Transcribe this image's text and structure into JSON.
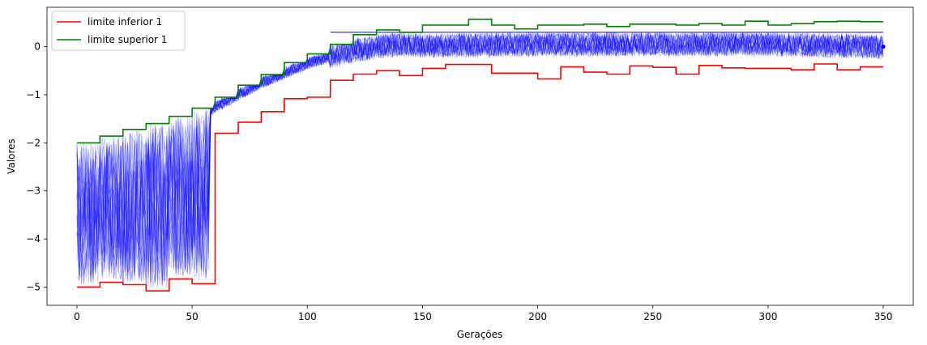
{
  "chart_data": {
    "type": "line",
    "xlabel": "Gerações",
    "ylabel": "Valores",
    "xlim": [
      -13,
      363
    ],
    "ylim": [
      -5.38,
      0.82
    ],
    "xticks": [
      0,
      50,
      100,
      150,
      200,
      250,
      300,
      350
    ],
    "yticks": [
      -5,
      -4,
      -3,
      -2,
      -1,
      0
    ],
    "grid": false,
    "legend_position": "top-left",
    "series": [
      {
        "name": "limite inferior 1",
        "color": "#ff0000",
        "x": [
          0,
          10,
          10,
          20,
          20,
          30,
          30,
          40,
          40,
          50,
          50,
          60,
          60,
          70,
          70,
          80,
          80,
          90,
          90,
          100,
          100,
          110,
          110,
          120,
          120,
          130,
          130,
          140,
          140,
          150,
          150,
          160,
          160,
          170,
          170,
          180,
          180,
          190,
          190,
          200,
          200,
          210,
          210,
          220,
          220,
          230,
          230,
          240,
          240,
          250,
          250,
          260,
          260,
          270,
          270,
          280,
          280,
          290,
          290,
          300,
          300,
          310,
          310,
          320,
          320,
          330,
          330,
          340,
          340,
          350
        ],
        "y": [
          -5.0,
          -5.0,
          -4.9,
          -4.9,
          -4.95,
          -4.95,
          -5.08,
          -5.08,
          -4.83,
          -4.83,
          -4.93,
          -4.93,
          -1.8,
          -1.8,
          -1.57,
          -1.57,
          -1.35,
          -1.35,
          -1.08,
          -1.08,
          -1.05,
          -1.05,
          -0.7,
          -0.7,
          -0.57,
          -0.57,
          -0.5,
          -0.5,
          -0.6,
          -0.6,
          -0.45,
          -0.45,
          -0.37,
          -0.37,
          -0.37,
          -0.37,
          -0.55,
          -0.55,
          -0.55,
          -0.55,
          -0.67,
          -0.67,
          -0.42,
          -0.42,
          -0.53,
          -0.53,
          -0.57,
          -0.57,
          -0.4,
          -0.4,
          -0.43,
          -0.43,
          -0.57,
          -0.57,
          -0.39,
          -0.39,
          -0.44,
          -0.44,
          -0.45,
          -0.45,
          -0.45,
          -0.45,
          -0.48,
          -0.48,
          -0.36,
          -0.36,
          -0.48,
          -0.48,
          -0.42,
          -0.42
        ]
      },
      {
        "name": "limite superior 1",
        "color": "#008000",
        "x": [
          0,
          10,
          10,
          20,
          20,
          30,
          30,
          40,
          40,
          50,
          50,
          60,
          60,
          70,
          70,
          80,
          80,
          90,
          90,
          100,
          100,
          110,
          110,
          120,
          120,
          130,
          130,
          140,
          140,
          150,
          150,
          160,
          160,
          170,
          170,
          180,
          180,
          190,
          190,
          200,
          200,
          210,
          210,
          220,
          220,
          230,
          230,
          240,
          240,
          250,
          250,
          260,
          260,
          270,
          270,
          280,
          280,
          290,
          290,
          300,
          300,
          310,
          310,
          320,
          320,
          330,
          330,
          340,
          340,
          350
        ],
        "y": [
          -2.0,
          -2.0,
          -1.86,
          -1.86,
          -1.72,
          -1.72,
          -1.6,
          -1.6,
          -1.45,
          -1.45,
          -1.28,
          -1.28,
          -1.05,
          -1.05,
          -0.8,
          -0.8,
          -0.58,
          -0.58,
          -0.33,
          -0.33,
          -0.15,
          -0.15,
          0.05,
          0.05,
          0.25,
          0.25,
          0.35,
          0.35,
          0.3,
          0.3,
          0.45,
          0.45,
          0.45,
          0.45,
          0.57,
          0.57,
          0.45,
          0.45,
          0.37,
          0.37,
          0.45,
          0.45,
          0.45,
          0.45,
          0.47,
          0.47,
          0.42,
          0.42,
          0.47,
          0.47,
          0.47,
          0.47,
          0.45,
          0.45,
          0.48,
          0.48,
          0.45,
          0.45,
          0.53,
          0.53,
          0.45,
          0.45,
          0.48,
          0.48,
          0.52,
          0.52,
          0.53,
          0.53,
          0.52,
          0.52
        ]
      }
    ],
    "population": {
      "color": "#0000ff",
      "description_count": 30,
      "phase1": {
        "x_range": [
          0,
          57
        ],
        "y_range": [
          -5.0,
          -2.0
        ]
      },
      "phase2_x": [
        57,
        60,
        70,
        80,
        90,
        100,
        110,
        120,
        130,
        140,
        150,
        200,
        250,
        300,
        350
      ],
      "phase2_mean": [
        -1.35,
        -1.25,
        -1.0,
        -0.75,
        -0.55,
        -0.35,
        -0.2,
        -0.08,
        0.0,
        0.05,
        0.02,
        0.05,
        0.05,
        0.05,
        0.0
      ],
      "highlight_line": {
        "x": [
          110,
          350
        ],
        "y": [
          0.3,
          0.3
        ]
      },
      "end_point": {
        "x": 350,
        "y": 0.0
      }
    }
  }
}
